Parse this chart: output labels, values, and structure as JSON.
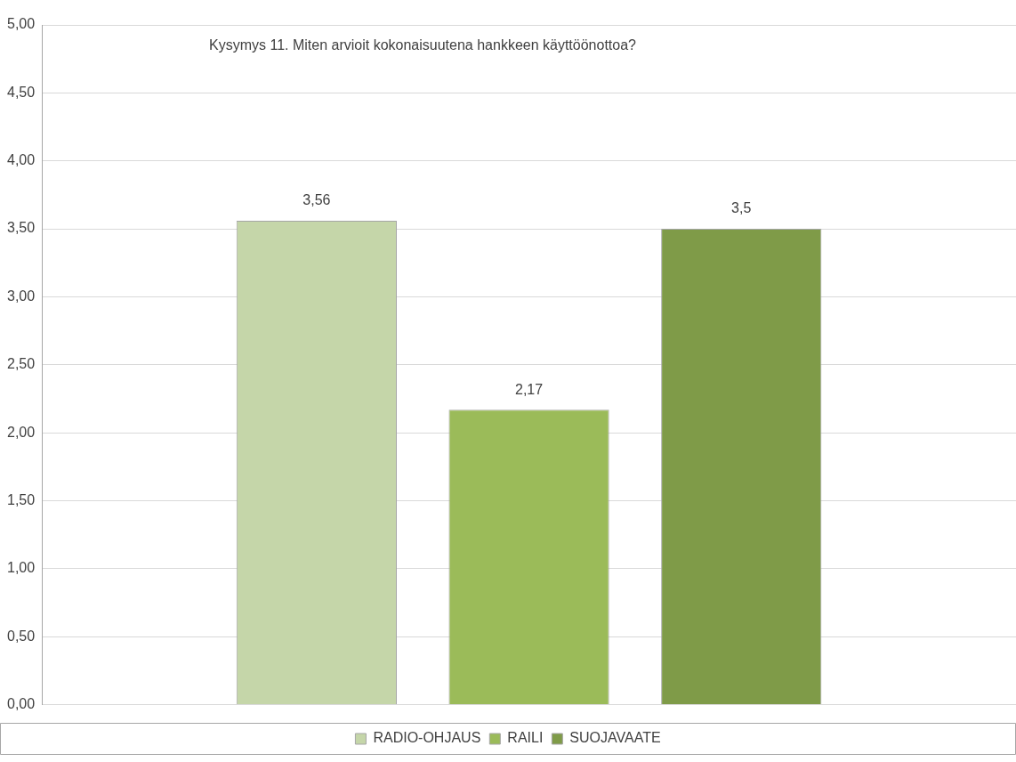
{
  "chart_data": {
    "type": "bar",
    "title": "Kysymys 11. Miten arvioit kokonaisuutena hankkeen käyttöönottoa?",
    "categories": [
      null
    ],
    "series": [
      {
        "name": "RADIO-OHJAUS",
        "color": "#c5d6a9",
        "values": [
          3.56
        ],
        "value_labels": [
          "3,56"
        ]
      },
      {
        "name": "RAILI",
        "color": "#9bbb59",
        "values": [
          2.17
        ],
        "value_labels": [
          "2,17"
        ]
      },
      {
        "name": "SUOJAVAATE",
        "color": "#7f9b48",
        "values": [
          3.5
        ],
        "value_labels": [
          "3,5"
        ]
      }
    ],
    "ylim": [
      0,
      5
    ],
    "yticks": [
      {
        "value": 0,
        "label": "0,00"
      },
      {
        "value": 0.5,
        "label": "0,50"
      },
      {
        "value": 1,
        "label": "1,00"
      },
      {
        "value": 1.5,
        "label": "1,50"
      },
      {
        "value": 2,
        "label": "2,00"
      },
      {
        "value": 2.5,
        "label": "2,50"
      },
      {
        "value": 3,
        "label": "3,00"
      },
      {
        "value": 3.5,
        "label": "3,50"
      },
      {
        "value": 4,
        "label": "4,00"
      },
      {
        "value": 4.5,
        "label": "4,50"
      },
      {
        "value": 5,
        "label": "5,00"
      }
    ],
    "grid": "y",
    "legend": "bottom"
  }
}
